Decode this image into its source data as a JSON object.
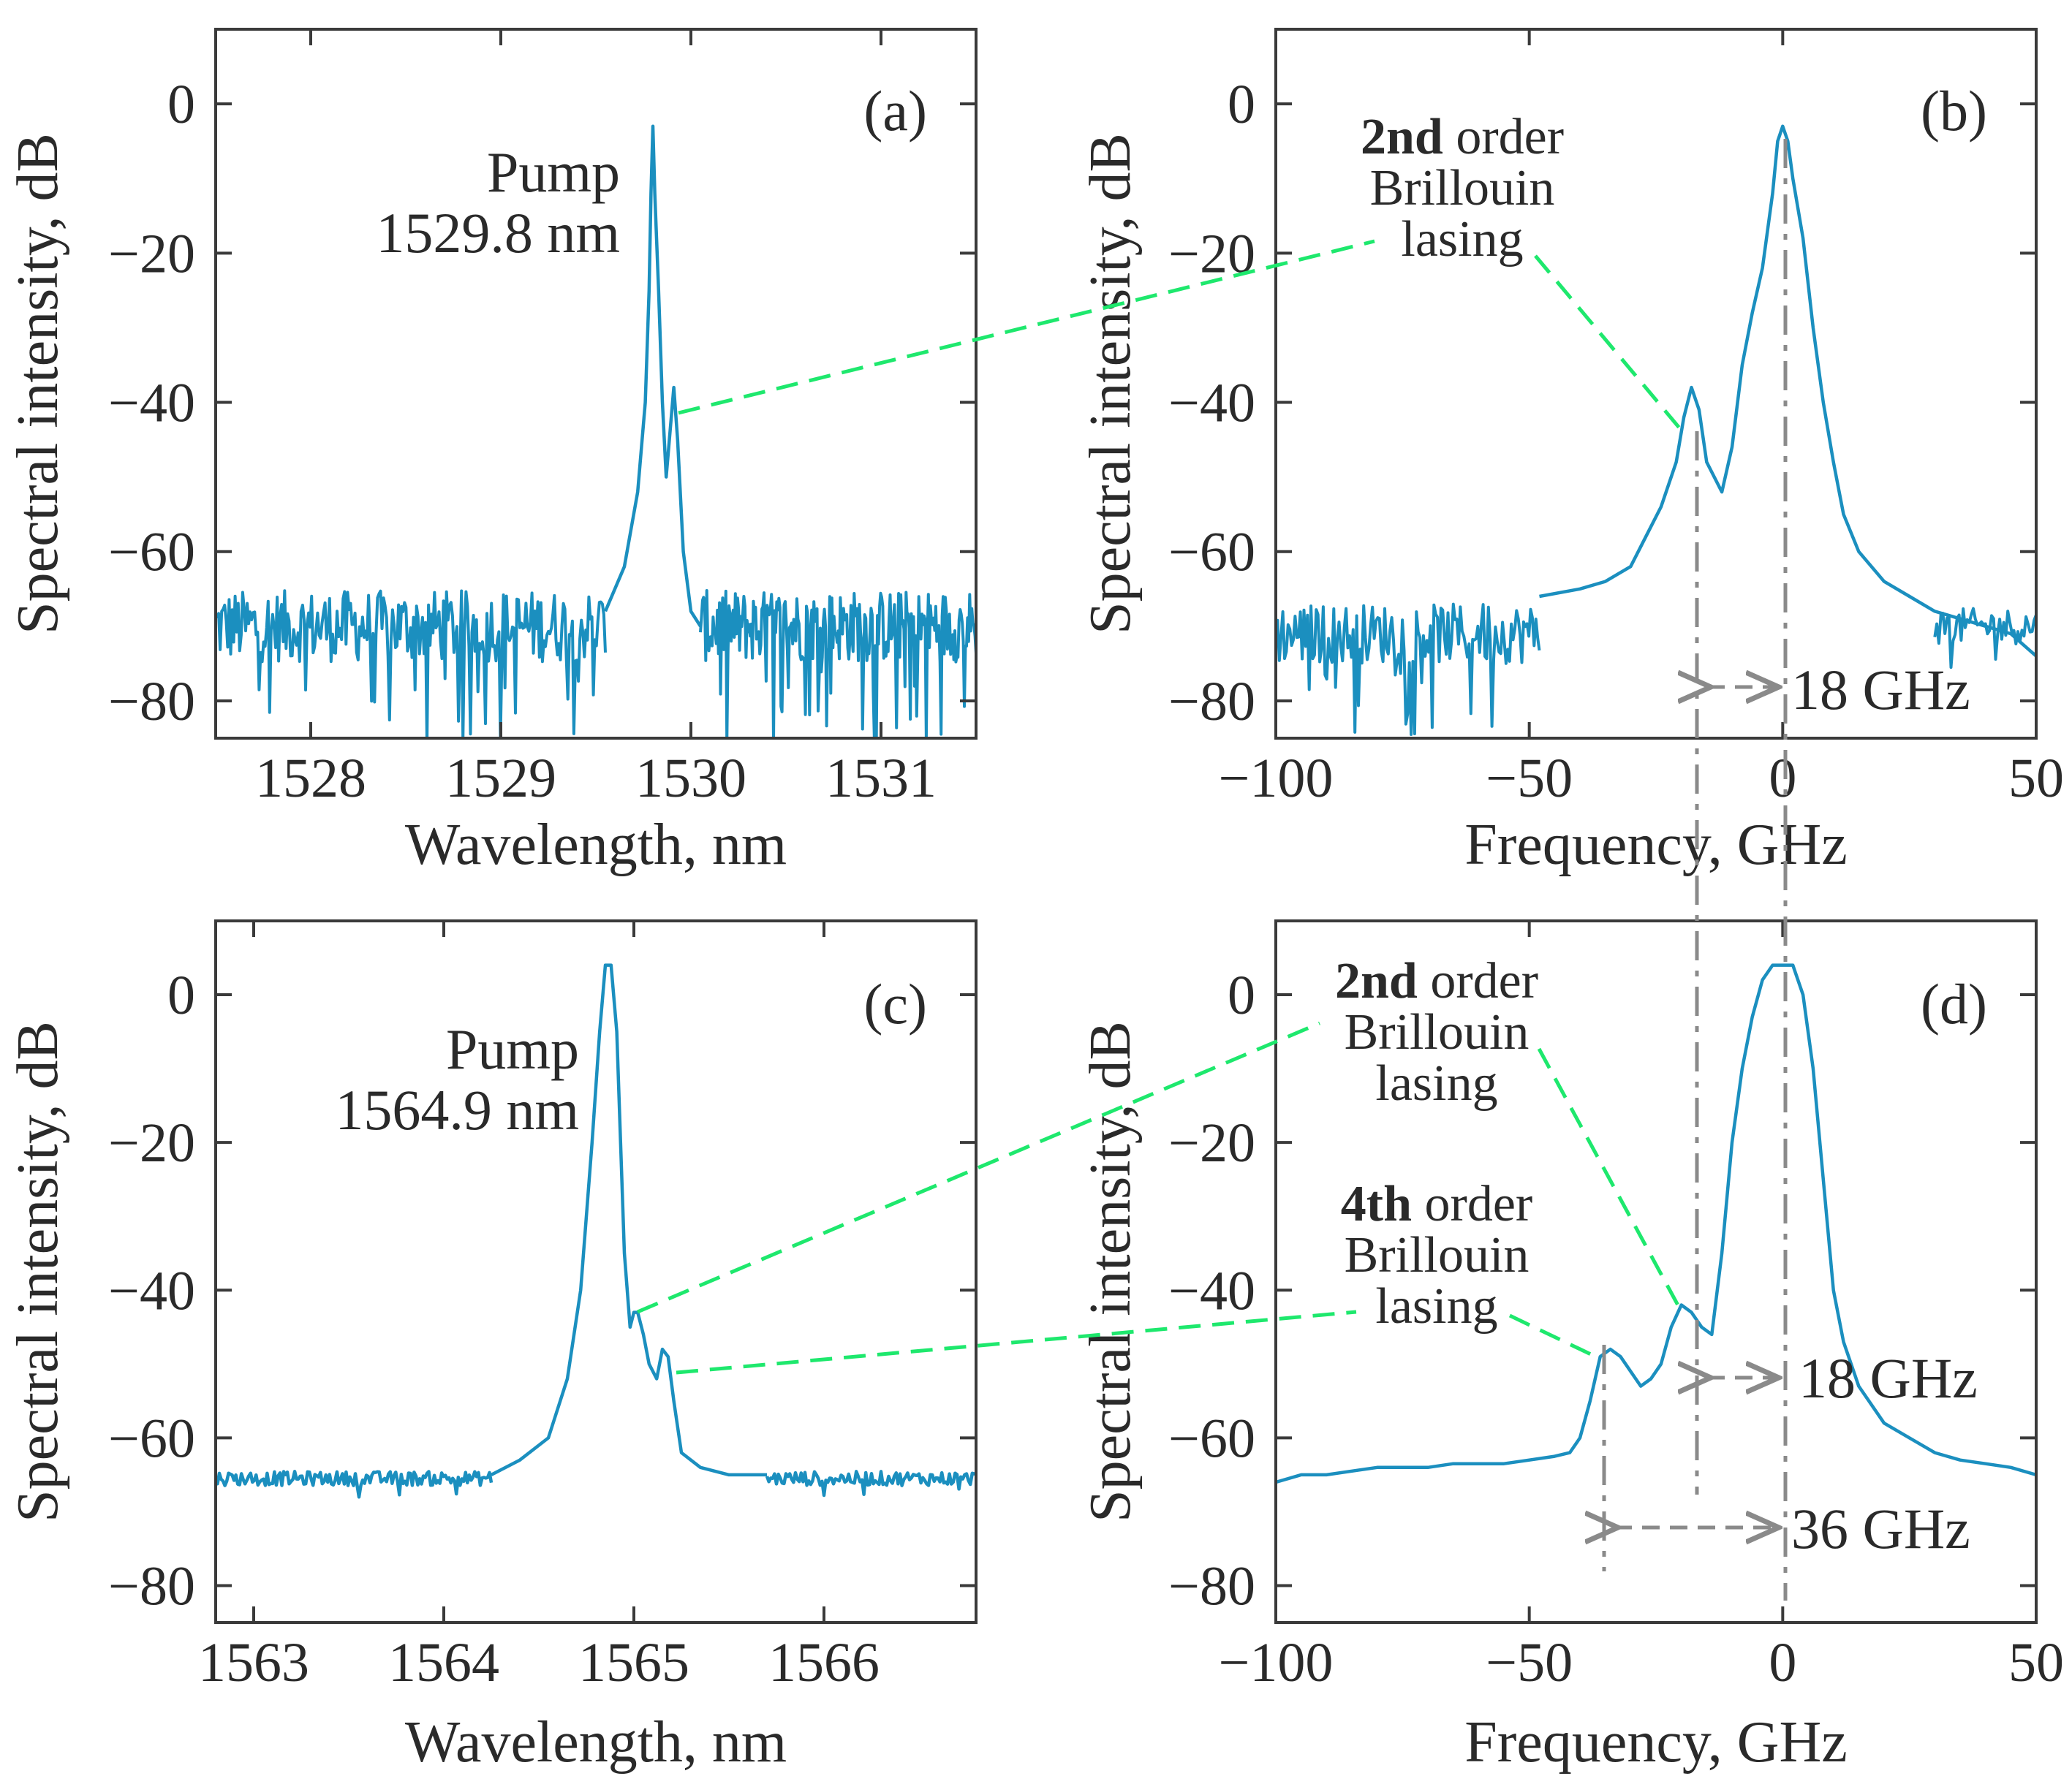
{
  "chart_data": [
    {
      "id": "a",
      "type": "line",
      "panel_label": "(a)",
      "xlabel": "Wavelength, nm",
      "ylabel": "Spectral intensity, dB",
      "xlim": [
        1527.5,
        1531.5
      ],
      "ylim": [
        -85,
        10
      ],
      "xticks": [
        1528,
        1529,
        1530,
        1531
      ],
      "yticks": [
        0,
        -20,
        -40,
        -60,
        -80
      ],
      "annotations": [
        {
          "text": "Pump",
          "x": 1529.8
        },
        {
          "text": "1529.8 nm",
          "x": 1529.8
        }
      ],
      "noise_floor": -70,
      "noise_amplitude": 6,
      "series": [
        {
          "name": "spectrum",
          "x": [
            1529.55,
            1529.65,
            1529.72,
            1529.76,
            1529.78,
            1529.79,
            1529.8,
            1529.81,
            1529.83,
            1529.85,
            1529.87,
            1529.89,
            1529.91,
            1529.93,
            1529.96,
            1530.0,
            1530.05
          ],
          "y": [
            -68,
            -62,
            -52,
            -40,
            -25,
            -12,
            -3,
            -12,
            -25,
            -40,
            -50,
            -44,
            -38,
            -45,
            -60,
            -68,
            -70
          ]
        }
      ]
    },
    {
      "id": "b",
      "type": "line",
      "panel_label": "(b)",
      "xlabel": "Frequency, GHz",
      "ylabel": "Spectral intensity, dB",
      "xlim": [
        -100,
        50
      ],
      "ylim": [
        -85,
        10
      ],
      "xticks": [
        -100,
        -50,
        0,
        50
      ],
      "yticks": [
        0,
        -20,
        -40,
        -60,
        -80
      ],
      "annotations": [
        {
          "text_bold": "2nd",
          "text": " order",
          "line2": "Brillouin",
          "line3": "lasing"
        },
        {
          "text": "18 GHz"
        }
      ],
      "noise_floor": -71,
      "noise_amplitude": 5,
      "series": [
        {
          "name": "spectrum",
          "x": [
            -48,
            -40,
            -35,
            -30,
            -27,
            -24,
            -21,
            -19.5,
            -18,
            -16.5,
            -15,
            -12,
            -10,
            -8,
            -6,
            -4,
            -2,
            -1,
            0,
            1,
            2,
            4,
            6,
            8,
            10,
            12,
            15,
            20,
            25,
            30,
            35,
            40,
            45,
            50
          ],
          "y": [
            -66,
            -65,
            -64,
            -62,
            -58,
            -54,
            -48,
            -42,
            -38,
            -41,
            -48,
            -52,
            -46,
            -35,
            -28,
            -22,
            -12,
            -5,
            -3,
            -5,
            -10,
            -18,
            -30,
            -40,
            -48,
            -55,
            -60,
            -64,
            -66,
            -68,
            -69,
            -70,
            -71,
            -74
          ]
        }
      ]
    },
    {
      "id": "c",
      "type": "line",
      "panel_label": "(c)",
      "xlabel": "Wavelength, nm",
      "ylabel": "Spectral intensity, dB",
      "xlim": [
        1562.8,
        1566.8
      ],
      "ylim": [
        -85,
        10
      ],
      "xticks": [
        1563,
        1564,
        1565,
        1566
      ],
      "yticks": [
        0,
        -20,
        -40,
        -60,
        -80
      ],
      "annotations": [
        {
          "text": "Pump",
          "x": 1564.9
        },
        {
          "text": "1564.9 nm",
          "x": 1564.9
        }
      ],
      "noise_floor": -65.5,
      "noise_amplitude": 1.2,
      "series": [
        {
          "name": "spectrum",
          "x": [
            1564.25,
            1564.4,
            1564.55,
            1564.65,
            1564.72,
            1564.78,
            1564.82,
            1564.85,
            1564.88,
            1564.91,
            1564.93,
            1564.95,
            1564.98,
            1565.0,
            1565.02,
            1565.05,
            1565.08,
            1565.12,
            1565.15,
            1565.18,
            1565.21,
            1565.25,
            1565.35,
            1565.5,
            1565.7
          ],
          "y": [
            -65,
            -63,
            -60,
            -52,
            -40,
            -20,
            -5,
            4,
            4,
            -5,
            -20,
            -35,
            -45,
            -43,
            -43,
            -46,
            -50,
            -52,
            -48,
            -49,
            -55,
            -62,
            -64,
            -65,
            -65
          ]
        }
      ]
    },
    {
      "id": "d",
      "type": "line",
      "panel_label": "(d)",
      "xlabel": "Frequency, GHz",
      "ylabel": "Spectral intensity, dB",
      "xlim": [
        -100,
        50
      ],
      "ylim": [
        -85,
        10
      ],
      "xticks": [
        -100,
        -50,
        0,
        50
      ],
      "yticks": [
        0,
        -20,
        -40,
        -60,
        -80
      ],
      "annotations": [
        {
          "text_bold": "2nd",
          "text": " order",
          "line2": "Brillouin",
          "line3": "lasing"
        },
        {
          "text_bold": "4th",
          "text": " order",
          "line2": "Brillouin",
          "line3": "lasing"
        },
        {
          "text": "18 GHz"
        },
        {
          "text": "36 GHz"
        }
      ],
      "series": [
        {
          "name": "spectrum",
          "x": [
            -100,
            -95,
            -90,
            -85,
            -80,
            -75,
            -70,
            -65,
            -60,
            -55,
            -50,
            -45,
            -42,
            -40,
            -38,
            -36,
            -34,
            -32,
            -30,
            -28,
            -26,
            -24,
            -22,
            -20,
            -18,
            -16,
            -14,
            -12,
            -10,
            -8,
            -6,
            -4,
            -2,
            0,
            2,
            4,
            6,
            8,
            10,
            12,
            15,
            20,
            25,
            30,
            35,
            40,
            45,
            50
          ],
          "y": [
            -66,
            -65,
            -65,
            -64.5,
            -64,
            -64,
            -64,
            -63.5,
            -63.5,
            -63.5,
            -63,
            -62.5,
            -62,
            -60,
            -55,
            -49,
            -48,
            -49,
            -51,
            -53,
            -52,
            -50,
            -45,
            -42,
            -43,
            -45,
            -46,
            -35,
            -20,
            -10,
            -3,
            2,
            4,
            4,
            4,
            0,
            -10,
            -25,
            -40,
            -47,
            -53,
            -58,
            -60,
            -62,
            -63,
            -63.5,
            -64,
            -65
          ]
        }
      ]
    }
  ]
}
